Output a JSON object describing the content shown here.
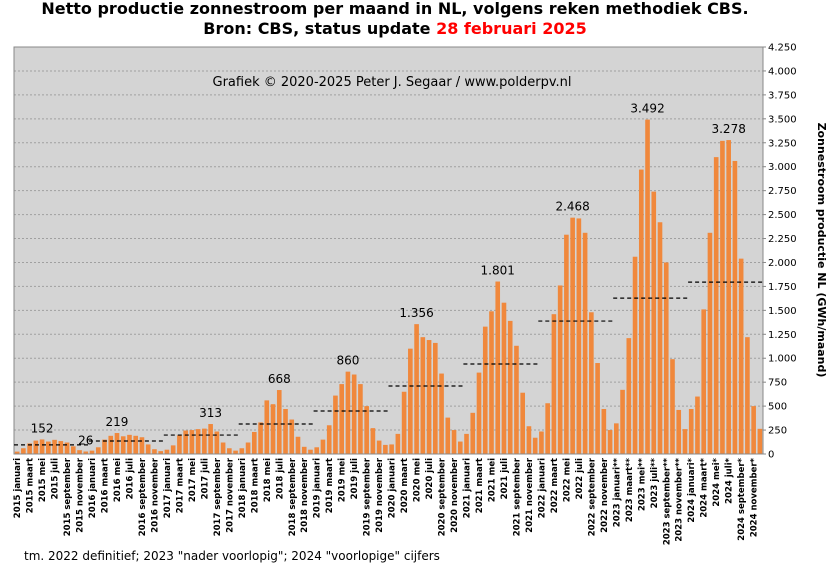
{
  "chart_data": {
    "type": "bar",
    "title": "Netto productie zonnestroom per maand in NL, volgens reken methodiek CBS.",
    "title_line2": "Bron: CBS, status update",
    "title_line2_highlight": "28 februari 2025",
    "title_highlight_color": "#ff0000",
    "subtitle": "Grafiek  © 2020-2025 Peter J. Segaar / www.polderpv.nl",
    "y_label": "Zonnestroom productie NL (GWh/maand)",
    "footnote": "tm. 2022 definitief; 2023 \"nader voorlopig\";  2024 \"voorlopige\"  cijfers",
    "color": "#f0883c",
    "grid": true,
    "categories": [
      "2015 januari",
      null,
      "2015 maart",
      null,
      "2015 mei",
      null,
      "2015 juli",
      null,
      "2015 september",
      null,
      "2015 november",
      null,
      "2016 januari",
      null,
      "2016 maart",
      null,
      "2016 mei",
      null,
      "2016 juli",
      null,
      "2016 september",
      null,
      "2016 november",
      null,
      "2017 januari",
      null,
      "2017 maart",
      null,
      "2017 mei",
      null,
      "2017 juli",
      null,
      "2017 september",
      null,
      "2017 november",
      null,
      "2018 januari",
      null,
      "2018 maart",
      null,
      "2018 mei",
      null,
      "2018 juli",
      null,
      "2018 september",
      null,
      "2018 november",
      null,
      "2019 januari",
      null,
      "2019 maart",
      null,
      "2019 mei",
      null,
      "2019 juli",
      null,
      "2019 september",
      null,
      "2019 november",
      null,
      "2020 januari",
      null,
      "2020 maart",
      null,
      "2020 mei",
      null,
      "2020 juli",
      null,
      "2020 september",
      null,
      "2020 november",
      null,
      "2021 januari",
      null,
      "2021 maart",
      null,
      "2021 mei",
      null,
      "2021 juli",
      null,
      "2021 september",
      null,
      "2021 november",
      null,
      "2022 januari",
      null,
      "2022 maart",
      null,
      "2022 mei",
      null,
      "2022 juli",
      null,
      "2022 september",
      null,
      "2022 november",
      null,
      "2023 januari**",
      null,
      "2023 maart**",
      null,
      "2023 mei**",
      null,
      "2023 juli**",
      null,
      "2023 september**",
      null,
      "2023 november**",
      null,
      "2024 januari*",
      null,
      "2024 maart*",
      null,
      "2024 mei*",
      null,
      "2024 juli*",
      null,
      "2024 september*",
      null,
      "2024 november*",
      null
    ],
    "values": [
      25,
      60,
      110,
      140,
      152,
      130,
      148,
      135,
      120,
      80,
      40,
      26,
      35,
      70,
      150,
      190,
      219,
      185,
      200,
      190,
      175,
      100,
      50,
      30,
      45,
      90,
      195,
      245,
      250,
      260,
      265,
      313,
      235,
      120,
      60,
      35,
      60,
      120,
      230,
      330,
      560,
      520,
      668,
      470,
      360,
      180,
      75,
      45,
      70,
      150,
      300,
      610,
      730,
      860,
      830,
      730,
      500,
      270,
      140,
      95,
      100,
      210,
      650,
      1100,
      1356,
      1220,
      1190,
      1160,
      840,
      380,
      250,
      130,
      210,
      430,
      850,
      1330,
      1490,
      1801,
      1580,
      1390,
      1130,
      640,
      290,
      170,
      235,
      530,
      1460,
      1760,
      2290,
      2468,
      2460,
      2310,
      1480,
      950,
      470,
      250,
      320,
      670,
      1210,
      2060,
      2970,
      3492,
      2740,
      2420,
      2000,
      990,
      460,
      260,
      470,
      600,
      1510,
      2310,
      3100,
      3270,
      3278,
      3060,
      2040,
      1220,
      500,
      263
    ],
    "value_labels": [
      null,
      null,
      null,
      null,
      "152",
      null,
      null,
      null,
      null,
      null,
      null,
      "26",
      null,
      null,
      null,
      null,
      "219",
      null,
      null,
      null,
      null,
      null,
      null,
      null,
      null,
      null,
      null,
      null,
      null,
      null,
      null,
      "313",
      null,
      null,
      null,
      null,
      null,
      null,
      null,
      null,
      null,
      null,
      "668",
      null,
      null,
      null,
      null,
      null,
      null,
      null,
      null,
      null,
      null,
      "860",
      null,
      null,
      null,
      null,
      null,
      null,
      null,
      null,
      null,
      null,
      "1.356",
      null,
      null,
      null,
      null,
      null,
      null,
      null,
      null,
      null,
      null,
      null,
      null,
      "1.801",
      null,
      null,
      null,
      null,
      null,
      null,
      null,
      null,
      null,
      null,
      null,
      "2.468",
      null,
      null,
      null,
      null,
      null,
      null,
      null,
      null,
      null,
      null,
      null,
      "3.492",
      null,
      null,
      null,
      null,
      null,
      null,
      null,
      null,
      null,
      null,
      null,
      null,
      "3.278",
      null,
      null,
      null,
      null,
      null
    ],
    "value_label_colors": {
      "11": "#0000ff",
      "101": "#ff0000"
    },
    "year_averages": [
      95,
      136,
      198,
      313,
      449,
      710,
      940,
      1388,
      1628,
      1795
    ],
    "ylim": [
      0,
      4250
    ],
    "yticks": [
      0,
      250,
      500,
      750,
      {
        "value": 1000,
        "label": "1.000"
      },
      {
        "value": 1250,
        "label": "1.250"
      },
      {
        "value": 1500,
        "label": "1.500"
      },
      {
        "value": 1750,
        "label": "1.750"
      },
      {
        "value": 2000,
        "label": "2.000"
      },
      {
        "value": 2250,
        "label": "2.250"
      },
      {
        "value": 2500,
        "label": "2.500"
      },
      {
        "value": 2750,
        "label": "2.750"
      },
      {
        "value": 3000,
        "label": "3.000"
      },
      {
        "value": 3250,
        "label": "3.250"
      },
      {
        "value": 3500,
        "label": "3.500"
      },
      {
        "value": 3750,
        "label": "3.750"
      },
      {
        "value": 4000,
        "label": "4.000"
      },
      {
        "value": 4250,
        "label": "4.250"
      }
    ]
  }
}
